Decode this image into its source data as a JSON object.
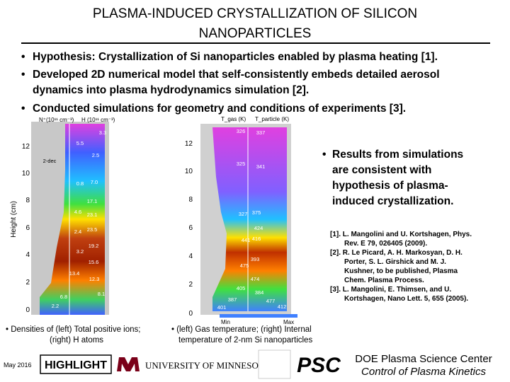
{
  "header": {
    "title": [
      "PLASMA-INDUCED CRYSTALLIZATION OF SILICON",
      "NANOPARTICLES"
    ]
  },
  "bullets": [
    [
      "Hypothesis: Crystallization of Si nanoparticles enabled by plasma heating [1]."
    ],
    [
      "Developed 2D numerical model that self-consistently embeds detailed aerosol",
      "dynamics into plasma hydrodynamics simulation [2]."
    ],
    [
      "Conducted simulations for geometry and conditions of experiments [3]."
    ]
  ],
  "figures": {
    "left": {
      "header_left": "N⁺(10¹¹ cm⁻³)",
      "header_right": "H (10¹¹ cm⁻³)",
      "y_label": "Height (cm)",
      "yticks": [
        "12",
        "10",
        "8",
        "6",
        "4",
        "2",
        "0"
      ],
      "note": "2-dec",
      "contour_labels": [
        "3.3",
        "5.5",
        "2.5",
        "7.0",
        "0.8",
        "17.1",
        "4.6",
        "23.1",
        "2.4",
        "23.5",
        "19.2",
        "3.2",
        "15.6",
        "12.3",
        "13.4",
        "8.1",
        "6.8",
        "2.2"
      ]
    },
    "right": {
      "header_left": "T_gas (K)",
      "header_right": "T_particle (K)",
      "yticks": [
        "12",
        "10",
        "8",
        "6",
        "4",
        "2",
        "0"
      ],
      "contour_labels": [
        "326",
        "337",
        "325",
        "341",
        "327",
        "375",
        "424",
        "441",
        "416",
        "393",
        "475",
        "474",
        "405",
        "384",
        "387",
        "477",
        "412",
        "401"
      ],
      "legend": [
        "Min",
        "Max"
      ]
    }
  },
  "result": [
    "Results from simulations",
    "are consistent with",
    "hypothesis of plasma-",
    "induced crystallization."
  ],
  "references": [
    "[1]. L. Mangolini and U. Kortshagen, Phys.",
    "Rev. E 79, 026405 (2009).",
    "[2]. R. Le Picard, A. H. Markosyan, D. H.",
    "Porter, S. L. Girshick and M. J.",
    "Kushner, to be published, Plasma",
    "Chem. Plasma Process.",
    "[3]. L. Mangolini, E. Thimsen, and U.",
    "Kortshagen, Nano Lett. 5, 655 (2005)."
  ],
  "captions": {
    "left": [
      "• Densities of (left) Total positive ions;",
      "(right) H atoms"
    ],
    "right": [
      "• (left) Gas temperature; (right) Internal",
      "temperature of 2-nm Si nanoparticles"
    ]
  },
  "footer": {
    "date": "May 2016",
    "badge": "HIGHLIGHT",
    "university": "UNIVERSITY OF MINNESOTA",
    "logo": "PSC",
    "center": "DOE Plasma Science Center",
    "subtitle": "Control of Plasma Kinetics"
  }
}
